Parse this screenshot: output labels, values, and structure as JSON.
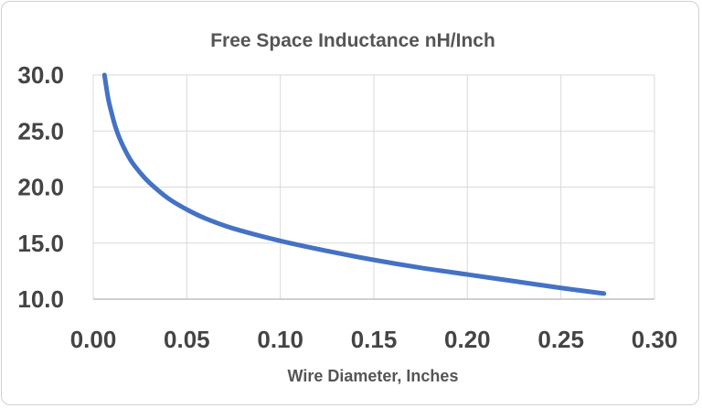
{
  "chart_data": {
    "type": "line",
    "title": "Free Space Inductance nH/Inch",
    "xlabel": "Wire Diameter, Inches",
    "ylabel": "",
    "xlim": [
      0.0,
      0.3
    ],
    "ylim": [
      10.0,
      30.0
    ],
    "x_ticks": [
      "0.00",
      "0.05",
      "0.10",
      "0.15",
      "0.20",
      "0.25",
      "0.30"
    ],
    "y_ticks": [
      "10.0",
      "15.0",
      "20.0",
      "25.0",
      "30.0"
    ],
    "grid": true,
    "legend": "none",
    "series": [
      {
        "color": "#4472c4",
        "x": [
          0.006,
          0.008,
          0.01,
          0.012,
          0.015,
          0.02,
          0.025,
          0.03,
          0.04,
          0.05,
          0.06,
          0.075,
          0.1,
          0.125,
          0.15,
          0.175,
          0.2,
          0.225,
          0.25,
          0.273
        ],
        "y": [
          30.0,
          27.9,
          26.5,
          25.3,
          24.0,
          22.4,
          21.3,
          20.4,
          19.0,
          18.0,
          17.2,
          16.3,
          15.2,
          14.3,
          13.5,
          12.8,
          12.2,
          11.6,
          11.0,
          10.5
        ]
      }
    ]
  }
}
